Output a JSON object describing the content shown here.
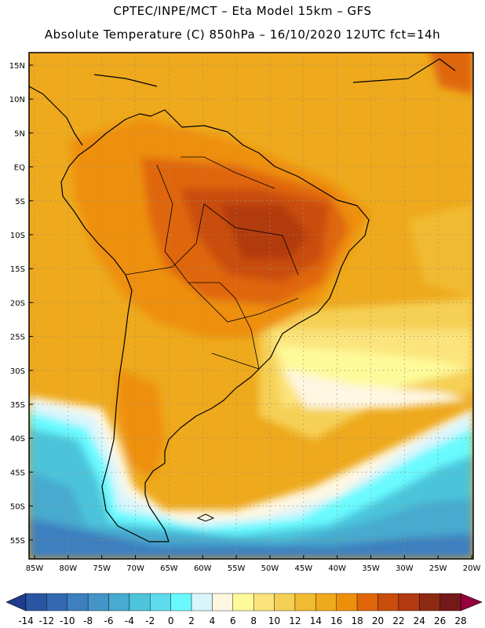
{
  "header": {
    "line1": "CPTEC/INPE/MCT –   Eta Model 15km – GFS",
    "line2": "Absolute Temperature (C) 850hPa – 16/10/2020 12UTC fct=14h"
  },
  "map": {
    "lat_labels": [
      "15N",
      "10N",
      "5N",
      "EQ",
      "5S",
      "10S",
      "15S",
      "20S",
      "25S",
      "30S",
      "35S",
      "40S",
      "45S",
      "50S",
      "55S"
    ],
    "lon_labels": [
      "85W",
      "80W",
      "75W",
      "70W",
      "65W",
      "60W",
      "55W",
      "50W",
      "45W",
      "40W",
      "35W",
      "30W",
      "25W",
      "20W"
    ],
    "background_color": "#eea91c"
  },
  "colorbar": {
    "tick_labels": [
      "-14",
      "-12",
      "-10",
      "-8",
      "-6",
      "-4",
      "-2",
      "0",
      "2",
      "4",
      "6",
      "8",
      "10",
      "12",
      "14",
      "16",
      "18",
      "20",
      "22",
      "24",
      "26",
      "28"
    ],
    "colors": [
      "#1d3b8f",
      "#2a55a2",
      "#3469b1",
      "#3d7fbf",
      "#4494c8",
      "#47aacf",
      "#4cc4db",
      "#5edced",
      "#69faff",
      "#d9f5fc",
      "#fef7e2",
      "#fefa9a",
      "#fbe47b",
      "#f5d055",
      "#f0bb30",
      "#eea91c",
      "#ee8f0c",
      "#e06609",
      "#c94d0d",
      "#b23a10",
      "#8e2a11",
      "#74191a",
      "#94003c"
    ]
  }
}
